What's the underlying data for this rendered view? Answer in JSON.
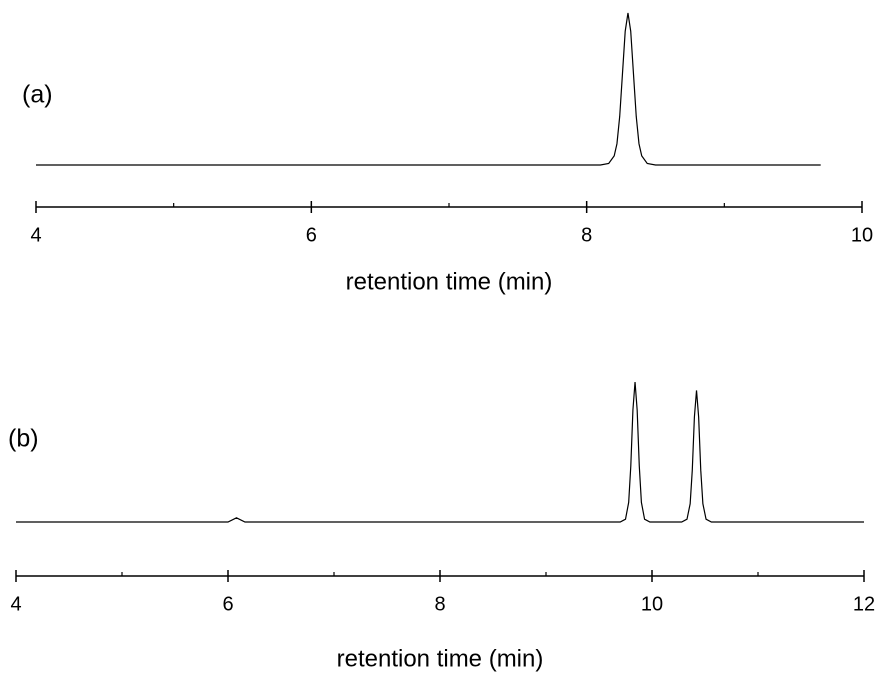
{
  "chart_data": [
    {
      "type": "line",
      "label": "(a)",
      "xlabel": "retention time (min)",
      "x": [
        4,
        8.1,
        8.16,
        8.2,
        8.22,
        8.24,
        8.26,
        8.28,
        8.3,
        8.32,
        8.34,
        8.36,
        8.38,
        8.4,
        8.44,
        8.5,
        9.7
      ],
      "values": [
        0,
        0,
        1,
        6,
        14,
        32,
        60,
        88,
        100,
        88,
        60,
        32,
        14,
        6,
        1,
        0,
        0
      ],
      "color": "#000000",
      "xlim": [
        4,
        10
      ],
      "ylim": [
        0,
        100
      ],
      "xticks": [
        4,
        6,
        8,
        10
      ],
      "xminorticks": [
        5,
        7,
        9
      ]
    },
    {
      "type": "line",
      "label": "(b)",
      "xlabel": "retention time (min)",
      "x": [
        4,
        6.0,
        6.08,
        6.16,
        9.7,
        9.75,
        9.78,
        9.8,
        9.82,
        9.84,
        9.86,
        9.88,
        9.9,
        9.93,
        9.98,
        10.28,
        10.33,
        10.36,
        10.38,
        10.4,
        10.42,
        10.44,
        10.46,
        10.48,
        10.51,
        10.56,
        12
      ],
      "values": [
        0,
        0,
        3,
        0,
        0,
        2,
        14,
        40,
        80,
        100,
        80,
        40,
        14,
        2,
        0,
        0,
        2,
        13,
        37,
        75,
        94,
        75,
        37,
        13,
        2,
        0,
        0
      ],
      "color": "#000000",
      "xlim": [
        4,
        12
      ],
      "ylim": [
        0,
        100
      ],
      "xticks": [
        4,
        6,
        8,
        10,
        12
      ],
      "xminorticks": [
        5,
        7,
        9,
        11
      ]
    }
  ]
}
